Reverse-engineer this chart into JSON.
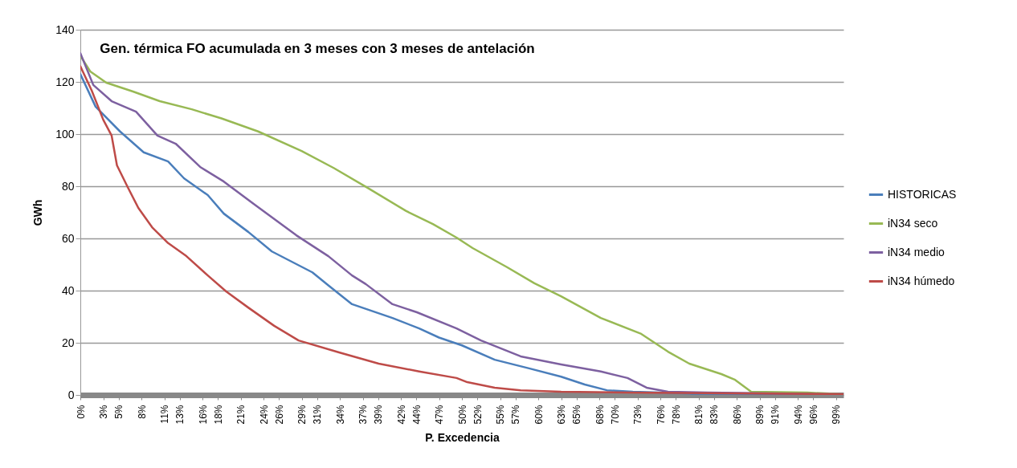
{
  "chart_data": {
    "type": "line",
    "title": "Gen. térmica FO acumulada en 3 meses con 3 meses de antelación",
    "xlabel": "P. Excedencia",
    "ylabel": "GWh",
    "xlim": [
      0,
      100
    ],
    "ylim": [
      0,
      140
    ],
    "yticks": [
      0,
      20,
      40,
      60,
      80,
      100,
      120,
      140
    ],
    "xticks": [
      {
        "value": 0,
        "label": "0%"
      },
      {
        "value": 3,
        "label": "3%"
      },
      {
        "value": 5,
        "label": "5%"
      },
      {
        "value": 8,
        "label": "8%"
      },
      {
        "value": 11,
        "label": "11%"
      },
      {
        "value": 13,
        "label": "13%"
      },
      {
        "value": 16,
        "label": "16%"
      },
      {
        "value": 18,
        "label": "18%"
      },
      {
        "value": 21,
        "label": "21%"
      },
      {
        "value": 24,
        "label": "24%"
      },
      {
        "value": 26,
        "label": "26%"
      },
      {
        "value": 29,
        "label": "29%"
      },
      {
        "value": 31,
        "label": "31%"
      },
      {
        "value": 34,
        "label": "34%"
      },
      {
        "value": 37,
        "label": "37%"
      },
      {
        "value": 39,
        "label": "39%"
      },
      {
        "value": 42,
        "label": "42%"
      },
      {
        "value": 44,
        "label": "44%"
      },
      {
        "value": 47,
        "label": "47%"
      },
      {
        "value": 50,
        "label": "50%"
      },
      {
        "value": 52,
        "label": "52%"
      },
      {
        "value": 55,
        "label": "55%"
      },
      {
        "value": 57,
        "label": "57%"
      },
      {
        "value": 60,
        "label": "60%"
      },
      {
        "value": 63,
        "label": "63%"
      },
      {
        "value": 65,
        "label": "65%"
      },
      {
        "value": 68,
        "label": "68%"
      },
      {
        "value": 70,
        "label": "70%"
      },
      {
        "value": 73,
        "label": "73%"
      },
      {
        "value": 76,
        "label": "76%"
      },
      {
        "value": 78,
        "label": "78%"
      },
      {
        "value": 81,
        "label": "81%"
      },
      {
        "value": 83,
        "label": "83%"
      },
      {
        "value": 86,
        "label": "86%"
      },
      {
        "value": 89,
        "label": "89%"
      },
      {
        "value": 91,
        "label": "91%"
      },
      {
        "value": 94,
        "label": "94%"
      },
      {
        "value": 96,
        "label": "96%"
      },
      {
        "value": 99,
        "label": "99%"
      }
    ],
    "grid": "y",
    "legend": "right",
    "series": [
      {
        "name": "HISTORICAS",
        "color": "#4a7ebb",
        "x": [
          0,
          2,
          5.2,
          8.3,
          11.5,
          13.6,
          16.7,
          18.8,
          22,
          25.1,
          30.4,
          32.5,
          35.6,
          40.9,
          44.4,
          47,
          50,
          54.3,
          58.8,
          63,
          66.1,
          69,
          72.4,
          76,
          80,
          100
        ],
        "values": [
          123,
          110.5,
          101,
          93,
          89.5,
          83,
          76.6,
          69.5,
          62.5,
          55,
          47,
          42,
          34.8,
          29.5,
          25.5,
          22,
          19,
          13.5,
          10.2,
          7,
          4,
          1.8,
          1.2,
          0.9,
          0.5,
          0.3
        ]
      },
      {
        "name": "iN34 seco",
        "color": "#98b954",
        "x": [
          0,
          1.3,
          3.4,
          6.9,
          10.4,
          14.6,
          18.5,
          23.3,
          29,
          33.2,
          37.4,
          42.7,
          46.2,
          49.3,
          51.4,
          55.9,
          59.5,
          63,
          68.2,
          73.5,
          77,
          79.8,
          84,
          85.8,
          87.9,
          95.3,
          100
        ],
        "values": [
          130,
          124,
          119.7,
          116.3,
          112.6,
          109.5,
          106,
          101,
          93.5,
          87,
          79.8,
          70.5,
          65.5,
          60.3,
          56.3,
          49,
          42.8,
          37.8,
          29.5,
          23.4,
          16.6,
          12,
          8,
          5.8,
          1.2,
          0.9,
          0.3
        ]
      },
      {
        "name": "iN34 medio",
        "color": "#7d60a0",
        "x": [
          0,
          1.7,
          4.1,
          7.3,
          10.1,
          12.5,
          15.7,
          18.8,
          23,
          28.3,
          32.5,
          35.6,
          37.4,
          40.9,
          44.1,
          49.3,
          52.5,
          57.7,
          63,
          68.2,
          71.7,
          74.2,
          77,
          82.2,
          100
        ],
        "values": [
          131,
          118.8,
          112.6,
          108.6,
          99.4,
          96.3,
          87.4,
          81.8,
          72.6,
          61.2,
          53.2,
          45.8,
          42.5,
          34.8,
          31.7,
          25.5,
          20.9,
          14.8,
          11.7,
          9,
          6.5,
          2.8,
          1.2,
          0.9,
          0.3
        ]
      },
      {
        "name": "iN34 húmedo",
        "color": "#be4b48",
        "x": [
          0,
          1.5,
          3,
          4.1,
          4.8,
          6.2,
          7.6,
          9.4,
          11.5,
          13.9,
          16.7,
          19.1,
          22,
          25.4,
          28.6,
          33.9,
          39.1,
          44.4,
          49.3,
          50.7,
          54.3,
          57.7,
          63,
          71.7,
          100
        ],
        "values": [
          126,
          116.6,
          105.5,
          99.4,
          88,
          79.7,
          71.7,
          64.3,
          58.2,
          53.2,
          45.8,
          39.7,
          33.5,
          26.5,
          20.9,
          16.3,
          12,
          9,
          6.5,
          4.9,
          2.8,
          1.8,
          1.2,
          0.9,
          0.3
        ]
      }
    ]
  }
}
